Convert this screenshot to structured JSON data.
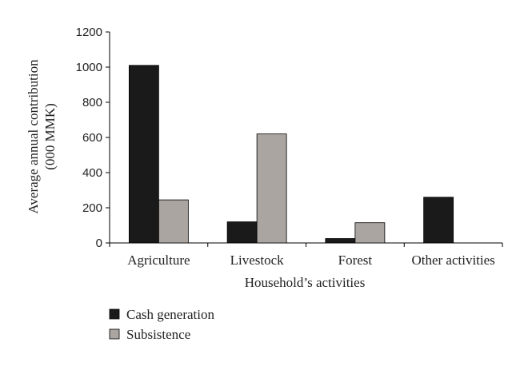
{
  "chart_data": {
    "type": "bar",
    "title": "",
    "xlabel": "Household’s activities",
    "ylabel_lines": [
      "Average annual contribution",
      "(000 MMK)"
    ],
    "categories": [
      "Agriculture",
      "Livestock",
      "Forest",
      "Other activities"
    ],
    "series": [
      {
        "name": "Cash generation",
        "values": [
          1010,
          120,
          25,
          260
        ],
        "color": "#1a1a1a"
      },
      {
        "name": "Subsistence",
        "values": [
          245,
          620,
          115,
          0
        ],
        "color": "#aaa5a0"
      }
    ],
    "ylim": [
      0,
      1200
    ],
    "yticks": [
      0,
      200,
      400,
      600,
      800,
      1000,
      1200
    ],
    "grid": false,
    "legend_position": "bottom-left"
  }
}
